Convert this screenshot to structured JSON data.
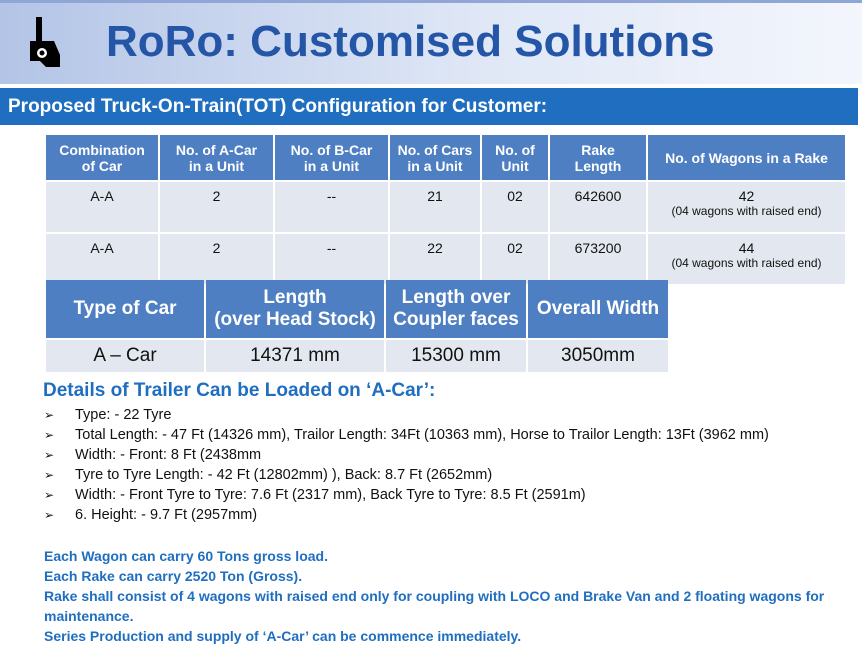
{
  "header": {
    "title": "RoRo: Customised Solutions"
  },
  "subtitle": "Proposed Truck-On-Train(TOT) Configuration for Customer:",
  "table1": {
    "columns": [
      [
        "Combination",
        "of Car"
      ],
      [
        "No. of A-Car",
        "in a Unit"
      ],
      [
        "No. of B-Car",
        "in a Unit"
      ],
      [
        "No. of Cars",
        "in a Unit"
      ],
      [
        "No. of",
        "Unit"
      ],
      [
        "Rake",
        "Length"
      ],
      [
        "No. of Wagons in a Rake"
      ]
    ],
    "rows": [
      [
        "A-A",
        "2",
        "--",
        "21",
        "02",
        "642600",
        {
          "value": "42",
          "note": "(04  wagons with raised end)"
        }
      ],
      [
        "A-A",
        "2",
        "--",
        "22",
        "02",
        "673200",
        {
          "value": "44",
          "note": "(04  wagons with raised end)"
        }
      ]
    ]
  },
  "table2": {
    "columns": [
      [
        "Type of Car"
      ],
      [
        "Length",
        "(over Head Stock)"
      ],
      [
        "Length over",
        "Coupler faces"
      ],
      [
        "Overall Width"
      ]
    ],
    "rows": [
      [
        "A – Car",
        "14371 mm",
        "15300 mm",
        "3050mm"
      ]
    ]
  },
  "details": {
    "heading": "Details of Trailer Can be Loaded on ‘A-Car’:",
    "items": [
      "Type: - 22 Tyre",
      "Total Length: - 47 Ft (14326 mm), Trailor Length: 34Ft (10363 mm), Horse to Trailor Length: 13Ft (3962 mm)",
      "Width: - Front: 8 Ft (2438mm",
      "Tyre to Tyre Length: - 42 Ft (12802mm) ), Back: 8.7 Ft (2652mm)",
      "Width: - Front Tyre to Tyre: 7.6 Ft (2317 mm), Back Tyre to Tyre: 8.5 Ft (2591m)",
      "6. Height: - 9.7 Ft (2957mm)"
    ]
  },
  "notes": [
    "Each Wagon can carry 60 Tons gross load.",
    "Each Rake can carry 2520 Ton (Gross).",
    "Rake shall consist of 4 wagons with raised end only for coupling with LOCO and Brake Van and 2 floating wagons for maintenance.",
    "Series Production and supply of ‘A-Car’ can be commence immediately."
  ]
}
